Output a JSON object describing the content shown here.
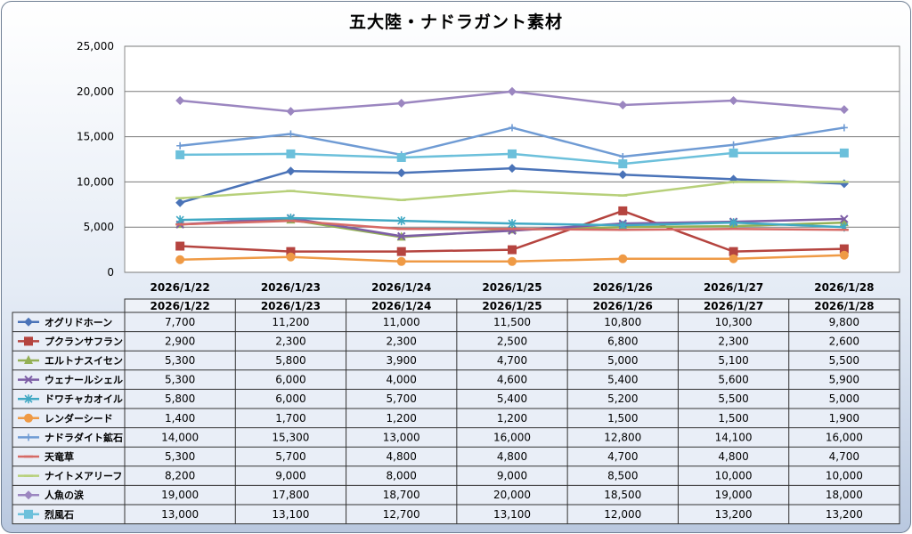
{
  "chart_data": {
    "type": "line",
    "title": "五大陸・ナドラガント素材",
    "categories": [
      "2026/1/22",
      "2026/1/23",
      "2026/1/24",
      "2026/1/25",
      "2026/1/26",
      "2026/1/27",
      "2026/1/28"
    ],
    "ylim": [
      0,
      25000
    ],
    "yticks": [
      "0",
      "5,000",
      "10,000",
      "15,000",
      "20,000",
      "25,000"
    ],
    "grid": true,
    "legend": "data-table",
    "series": [
      {
        "name": "オグリドホーン",
        "color": "#4a73b8",
        "marker": "diamond",
        "values": [
          7700,
          11200,
          11000,
          11500,
          10800,
          10300,
          9800
        ],
        "labels": [
          "7,700",
          "11,200",
          "11,000",
          "11,500",
          "10,800",
          "10,300",
          "9,800"
        ]
      },
      {
        "name": "プクランサフラン",
        "color": "#b5443f",
        "marker": "square",
        "values": [
          2900,
          2300,
          2300,
          2500,
          6800,
          2300,
          2600
        ],
        "labels": [
          "2,900",
          "2,300",
          "2,300",
          "2,500",
          "6,800",
          "2,300",
          "2,600"
        ]
      },
      {
        "name": "エルトナスイセン",
        "color": "#93b055",
        "marker": "triangle",
        "values": [
          5300,
          5800,
          3900,
          4700,
          5000,
          5100,
          5500
        ],
        "labels": [
          "5,300",
          "5,800",
          "3,900",
          "4,700",
          "5,000",
          "5,100",
          "5,500"
        ]
      },
      {
        "name": "ウェナールシェル",
        "color": "#7d5ea6",
        "marker": "x",
        "values": [
          5300,
          6000,
          4000,
          4600,
          5400,
          5600,
          5900
        ],
        "labels": [
          "5,300",
          "6,000",
          "4,000",
          "4,600",
          "5,400",
          "5,600",
          "5,900"
        ]
      },
      {
        "name": "ドワチャカオイル",
        "color": "#41a9c4",
        "marker": "star",
        "values": [
          5800,
          6000,
          5700,
          5400,
          5200,
          5500,
          5000
        ],
        "labels": [
          "5,800",
          "6,000",
          "5,700",
          "5,400",
          "5,200",
          "5,500",
          "5,000"
        ]
      },
      {
        "name": "レンダーシード",
        "color": "#ef9a45",
        "marker": "circle",
        "values": [
          1400,
          1700,
          1200,
          1200,
          1500,
          1500,
          1900
        ],
        "labels": [
          "1,400",
          "1,700",
          "1,200",
          "1,200",
          "1,500",
          "1,500",
          "1,900"
        ]
      },
      {
        "name": "ナドラダイト鉱石",
        "color": "#6f9bd4",
        "marker": "plus",
        "values": [
          14000,
          15300,
          13000,
          16000,
          12800,
          14100,
          16000
        ],
        "labels": [
          "14,000",
          "15,300",
          "13,000",
          "16,000",
          "12,800",
          "14,100",
          "16,000"
        ]
      },
      {
        "name": "天竜草",
        "color": "#d66a66",
        "marker": "dash",
        "values": [
          5300,
          5700,
          4800,
          4800,
          4700,
          4800,
          4700
        ],
        "labels": [
          "5,300",
          "5,700",
          "4,800",
          "4,800",
          "4,700",
          "4,800",
          "4,700"
        ]
      },
      {
        "name": "ナイトメアリーフ",
        "color": "#b7d07a",
        "marker": "dash",
        "values": [
          8200,
          9000,
          8000,
          9000,
          8500,
          10000,
          10000
        ],
        "labels": [
          "8,200",
          "9,000",
          "8,000",
          "9,000",
          "8,500",
          "10,000",
          "10,000"
        ]
      },
      {
        "name": "人魚の涙",
        "color": "#9b86c0",
        "marker": "diamond",
        "values": [
          19000,
          17800,
          18700,
          20000,
          18500,
          19000,
          18000
        ],
        "labels": [
          "19,000",
          "17,800",
          "18,700",
          "20,000",
          "18,500",
          "19,000",
          "18,000"
        ]
      },
      {
        "name": "烈風石",
        "color": "#6cc0db",
        "marker": "square",
        "values": [
          13000,
          13100,
          12700,
          13100,
          12000,
          13200,
          13200
        ],
        "labels": [
          "13,000",
          "13,100",
          "12,700",
          "13,100",
          "12,000",
          "13,200",
          "13,200"
        ]
      }
    ]
  }
}
